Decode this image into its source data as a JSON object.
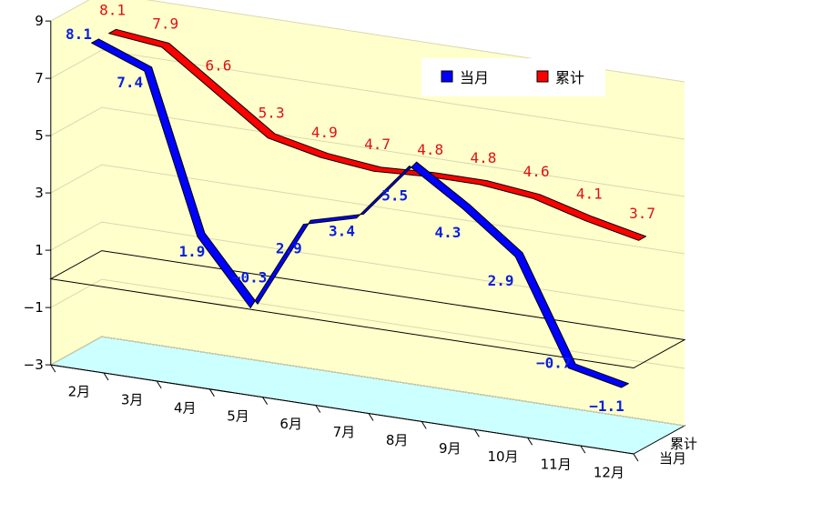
{
  "chart_data": {
    "type": "line",
    "categories": [
      "2月",
      "3月",
      "4月",
      "5月",
      "6月",
      "7月",
      "8月",
      "9月",
      "10月",
      "11月",
      "12月"
    ],
    "series": [
      {
        "name": "当月",
        "color": "#0000ff",
        "values": [
          8.1,
          7.4,
          1.9,
          -0.3,
          2.9,
          3.4,
          5.5,
          4.3,
          2.9,
          -0.7,
          -1.1
        ]
      },
      {
        "name": "累计",
        "color": "#ff0000",
        "values": [
          8.1,
          7.9,
          6.6,
          5.3,
          4.9,
          4.7,
          4.8,
          4.8,
          4.6,
          4.1,
          3.7
        ]
      }
    ],
    "yticks": [
      "9",
      "7",
      "5",
      "3",
      "1",
      "−1",
      "−3"
    ],
    "ylim": [
      -3,
      9
    ],
    "depth_labels": [
      "累计",
      "当月"
    ],
    "legend": {
      "position": "top-right",
      "items": [
        "当月",
        "累计"
      ]
    },
    "wall_color": "#ffffcc",
    "floor_color": "#ccffff",
    "grid": true
  }
}
